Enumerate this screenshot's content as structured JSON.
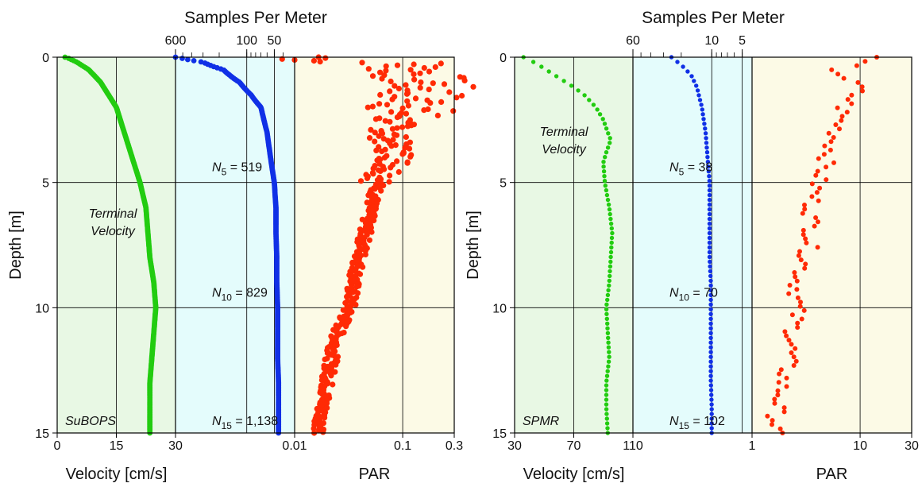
{
  "chart_data": [
    {
      "type": "scatter",
      "panel_id": "left",
      "title": "Samples Per Meter",
      "ylabel": "Depth [m]",
      "ylim": [
        0,
        15
      ],
      "y_reversed": true,
      "y_ticks": [
        "0",
        "5",
        "10",
        "15"
      ],
      "colors": {
        "panel1": "#e8f8e4",
        "panel2": "#e4fcfc",
        "panel3": "#fcfae6",
        "green": "#22cc10",
        "blue": "#1030e6",
        "red": "#ff2a05"
      },
      "sub_axes": [
        {
          "id": "velocity",
          "xlabel": "Velocity [cm/s]",
          "scale": "linear",
          "xlim": [
            0,
            30
          ],
          "ticks": [
            "0",
            "15",
            "30"
          ],
          "tick_values": [
            0,
            15,
            30
          ]
        },
        {
          "id": "samples",
          "title": "Samples Per Meter",
          "scale": "log",
          "xlim": [
            600,
            30
          ],
          "ticks": [
            "50",
            "100",
            "600"
          ],
          "tick_values": [
            50,
            100,
            600
          ]
        },
        {
          "id": "par",
          "xlabel": "PAR",
          "scale": "log",
          "xlim": [
            0.01,
            0.3
          ],
          "ticks": [
            "0.01",
            "0.1",
            "0.3"
          ],
          "tick_values": [
            0.01,
            0.1,
            0.3
          ]
        }
      ],
      "series": [
        {
          "name": "Terminal Velocity",
          "axis": "velocity",
          "color": "#22cc10",
          "points": [
            [
              2,
              0
            ],
            [
              3,
              0.05
            ],
            [
              5,
              0.2
            ],
            [
              8,
              0.5
            ],
            [
              11,
              1
            ],
            [
              13,
              1.5
            ],
            [
              15,
              2
            ],
            [
              17,
              3
            ],
            [
              19,
              4
            ],
            [
              21,
              5
            ],
            [
              22.5,
              6
            ],
            [
              23,
              7
            ],
            [
              23.5,
              8
            ],
            [
              24.5,
              9
            ],
            [
              25,
              10
            ],
            [
              24.5,
              11
            ],
            [
              24,
              12
            ],
            [
              23.5,
              13
            ],
            [
              23.5,
              14
            ],
            [
              23.5,
              15
            ]
          ]
        },
        {
          "name": "",
          "axis": "samples",
          "color": "#1030e6",
          "points": [
            [
              600,
              0
            ],
            [
              500,
              0.05
            ],
            [
              300,
              0.2
            ],
            [
              180,
              0.5
            ],
            [
              120,
              1
            ],
            [
              90,
              1.5
            ],
            [
              70,
              2
            ],
            [
              60,
              3
            ],
            [
              55,
              4
            ],
            [
              50,
              5
            ],
            [
              48,
              6
            ],
            [
              48,
              7
            ],
            [
              47,
              8
            ],
            [
              47,
              9
            ],
            [
              46,
              10
            ],
            [
              46,
              11
            ],
            [
              46,
              12
            ],
            [
              45,
              13
            ],
            [
              45,
              14
            ],
            [
              45,
              15
            ]
          ]
        },
        {
          "name": "",
          "axis": "par",
          "color": "#ff2a05",
          "points": [
            [
              0.06,
              1.2
            ],
            [
              0.1,
              0.2
            ],
            [
              0.15,
              1
            ],
            [
              0.2,
              0.5
            ],
            [
              0.07,
              3
            ],
            [
              0.09,
              4
            ],
            [
              0.06,
              5
            ],
            [
              0.05,
              6
            ],
            [
              0.045,
              7
            ],
            [
              0.04,
              8
            ],
            [
              0.035,
              9
            ],
            [
              0.032,
              10
            ],
            [
              0.025,
              11
            ],
            [
              0.022,
              12
            ],
            [
              0.02,
              13
            ],
            [
              0.018,
              14
            ],
            [
              0.017,
              15
            ]
          ]
        }
      ],
      "annotations": [
        {
          "base": "N",
          "sub": "5",
          "value": "519"
        },
        {
          "base": "N",
          "sub": "10",
          "value": "829"
        },
        {
          "base": "N",
          "sub": "15",
          "value": "1,138"
        }
      ],
      "label_terminal": [
        "Terminal",
        "Velocity"
      ],
      "label_corner": "SuBOPS"
    },
    {
      "type": "scatter",
      "panel_id": "right",
      "title": "Samples Per Meter",
      "ylabel": "Depth [m]",
      "ylim": [
        0,
        15
      ],
      "y_reversed": true,
      "y_ticks": [
        "0",
        "5",
        "10",
        "15"
      ],
      "colors": {
        "panel1": "#e8f8e4",
        "panel2": "#e4fcfc",
        "panel3": "#fcfae6",
        "green": "#22cc10",
        "blue": "#1030e6",
        "red": "#ff2a05"
      },
      "sub_axes": [
        {
          "id": "velocity",
          "xlabel": "Velocity [cm/s]",
          "scale": "linear",
          "xlim": [
            30,
            110
          ],
          "ticks": [
            "30",
            "70",
            "110"
          ],
          "tick_values": [
            30,
            70,
            110
          ]
        },
        {
          "id": "samples",
          "title": "Samples Per Meter",
          "scale": "log",
          "xlim": [
            60,
            4
          ],
          "ticks": [
            "5",
            "10",
            "60"
          ],
          "tick_values": [
            5,
            10,
            60
          ]
        },
        {
          "id": "par",
          "xlabel": "PAR",
          "scale": "log",
          "xlim": [
            1,
            30
          ],
          "ticks": [
            "1",
            "10",
            "30"
          ],
          "tick_values": [
            1,
            10,
            30
          ]
        }
      ],
      "series": [
        {
          "name": "Terminal Velocity",
          "axis": "velocity",
          "color": "#22cc10",
          "points": [
            [
              36,
              0
            ],
            [
              40,
              0.1
            ],
            [
              46,
              0.3
            ],
            [
              54,
              0.6
            ],
            [
              62,
              0.9
            ],
            [
              70,
              1.2
            ],
            [
              77,
              1.5
            ],
            [
              85,
              2
            ],
            [
              90,
              2.5
            ],
            [
              93,
              3
            ],
            [
              95,
              3.3
            ],
            [
              92,
              3.8
            ],
            [
              90,
              4.2
            ],
            [
              91,
              5
            ],
            [
              94,
              6
            ],
            [
              96,
              7
            ],
            [
              95,
              8
            ],
            [
              94,
              9
            ],
            [
              92,
              10
            ],
            [
              93,
              11
            ],
            [
              94,
              12
            ],
            [
              92,
              13
            ],
            [
              92,
              14
            ],
            [
              93,
              15
            ]
          ]
        },
        {
          "name": "",
          "axis": "samples",
          "color": "#1030e6",
          "points": [
            [
              25,
              0
            ],
            [
              20,
              0.3
            ],
            [
              16,
              0.7
            ],
            [
              14,
              1.2
            ],
            [
              12.5,
              2
            ],
            [
              11.5,
              3
            ],
            [
              11,
              4
            ],
            [
              10.5,
              5
            ],
            [
              10.5,
              6
            ],
            [
              10.5,
              7
            ],
            [
              10.5,
              8
            ],
            [
              10.2,
              9
            ],
            [
              10.2,
              10
            ],
            [
              10.2,
              11
            ],
            [
              10.2,
              12
            ],
            [
              10.2,
              13
            ],
            [
              10,
              14
            ],
            [
              10,
              15
            ]
          ]
        },
        {
          "name": "",
          "axis": "par",
          "color": "#ff2a05",
          "points": [
            [
              12,
              0
            ],
            [
              6,
              0.5
            ],
            [
              8,
              1
            ],
            [
              10,
              1.1
            ],
            [
              7,
              2
            ],
            [
              6,
              3
            ],
            [
              5,
              4
            ],
            [
              4,
              5
            ],
            [
              3.5,
              6
            ],
            [
              3.6,
              7
            ],
            [
              3.2,
              8
            ],
            [
              2.6,
              9
            ],
            [
              2.6,
              10
            ],
            [
              2.4,
              11
            ],
            [
              2.2,
              12
            ],
            [
              1.9,
              13
            ],
            [
              1.7,
              14
            ],
            [
              1.6,
              15
            ]
          ]
        }
      ],
      "annotations": [
        {
          "base": "N",
          "sub": "5",
          "value": "38"
        },
        {
          "base": "N",
          "sub": "10",
          "value": "70"
        },
        {
          "base": "N",
          "sub": "15",
          "value": "102"
        }
      ],
      "label_terminal": [
        "Terminal",
        "Velocity"
      ],
      "label_corner": "SPMR"
    }
  ]
}
